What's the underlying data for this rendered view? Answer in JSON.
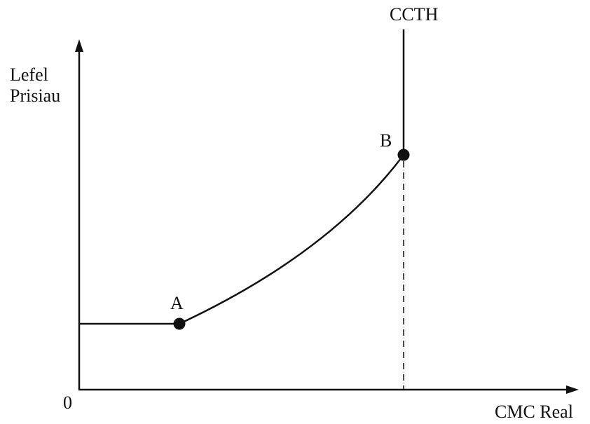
{
  "diagram": {
    "y_axis_label_line1": "Lefel",
    "y_axis_label_line2": "Prisiau",
    "x_axis_label": "CMC Real",
    "origin_label": "0",
    "curve_label": "CCTH",
    "points": [
      {
        "id": "A",
        "label": "A"
      },
      {
        "id": "B",
        "label": "B"
      }
    ],
    "colors": {
      "line": "#111111",
      "background": "#ffffff"
    }
  }
}
